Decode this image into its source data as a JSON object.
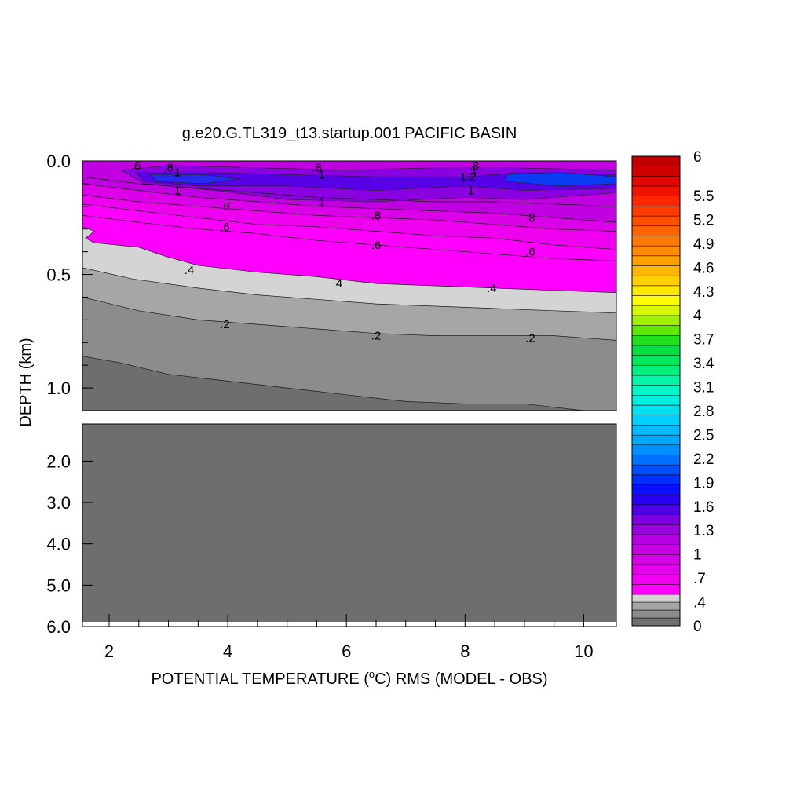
{
  "chart_data": {
    "type": "contour",
    "title": "g.e20.G.TL319_t13.startup.001 PACIFIC BASIN",
    "xlabel_pre": "POTENTIAL TEMPERATURE (",
    "xlabel_sup": "o",
    "xlabel_post": "C) RMS (MODEL - OBS)",
    "ylabel": "DEPTH (km)",
    "xlim": [
      1.55,
      10.55
    ],
    "x_ticks": [
      {
        "value": 2,
        "label": "2"
      },
      {
        "value": 4,
        "label": "4"
      },
      {
        "value": 6,
        "label": "6"
      },
      {
        "value": 8,
        "label": "8"
      },
      {
        "value": 10,
        "label": "10"
      }
    ],
    "upper_panel": {
      "ylim": [
        0.0,
        1.1
      ],
      "y_ticks": [
        {
          "value": 0.0,
          "label": "0.0"
        },
        {
          "value": 0.5,
          "label": "0.5"
        },
        {
          "value": 1.0,
          "label": "1.0"
        }
      ]
    },
    "lower_panel": {
      "ylim": [
        1.1,
        6.0
      ],
      "y_ticks": [
        {
          "value": 2.0,
          "label": "2.0"
        },
        {
          "value": 3.0,
          "label": "3.0"
        },
        {
          "value": 4.0,
          "label": "4.0"
        },
        {
          "value": 5.0,
          "label": "5.0"
        },
        {
          "value": 6.0,
          "label": "6.0"
        }
      ],
      "fill_value": 0.0
    },
    "contour_lines": [
      {
        "value": 0.1,
        "points": [
          [
            1.55,
            0.86
          ],
          [
            2.2,
            0.89
          ],
          [
            3.0,
            0.94
          ],
          [
            4.0,
            0.97
          ],
          [
            5.0,
            1.0
          ],
          [
            6.0,
            1.03
          ],
          [
            7.0,
            1.06
          ],
          [
            8.0,
            1.07
          ],
          [
            9.0,
            1.07
          ],
          [
            10.0,
            1.1
          ],
          [
            10.55,
            1.1
          ]
        ]
      },
      {
        "value": 0.2,
        "points": [
          [
            1.55,
            0.6
          ],
          [
            2.5,
            0.66
          ],
          [
            3.5,
            0.7
          ],
          [
            4.5,
            0.72
          ],
          [
            5.5,
            0.74
          ],
          [
            6.5,
            0.76
          ],
          [
            7.5,
            0.77
          ],
          [
            8.5,
            0.77
          ],
          [
            9.5,
            0.77
          ],
          [
            10.55,
            0.79
          ]
        ]
      },
      {
        "value": 0.3,
        "points": [
          [
            1.55,
            0.47
          ],
          [
            2.4,
            0.52
          ],
          [
            3.5,
            0.56
          ],
          [
            4.5,
            0.59
          ],
          [
            5.5,
            0.61
          ],
          [
            6.5,
            0.63
          ],
          [
            7.5,
            0.64
          ],
          [
            8.5,
            0.65
          ],
          [
            9.5,
            0.66
          ],
          [
            10.55,
            0.67
          ]
        ]
      },
      {
        "value": 0.4,
        "points": [
          [
            1.55,
            0.29
          ],
          [
            1.75,
            0.31
          ],
          [
            1.6,
            0.34
          ],
          [
            1.75,
            0.36
          ],
          [
            2.5,
            0.38
          ],
          [
            2.95,
            0.42
          ],
          [
            3.5,
            0.46
          ],
          [
            4.5,
            0.49
          ],
          [
            5.5,
            0.51
          ],
          [
            6.5,
            0.54
          ],
          [
            7.5,
            0.55
          ],
          [
            8.5,
            0.56
          ],
          [
            9.5,
            0.57
          ],
          [
            10.55,
            0.58
          ]
        ]
      },
      {
        "value": 0.5,
        "points": [
          [
            1.55,
            0.24
          ],
          [
            2.5,
            0.27
          ],
          [
            3.5,
            0.3
          ],
          [
            4.5,
            0.32
          ],
          [
            5.5,
            0.35
          ],
          [
            6.5,
            0.37
          ],
          [
            7.5,
            0.39
          ],
          [
            8.5,
            0.41
          ],
          [
            9.5,
            0.43
          ],
          [
            10.55,
            0.44
          ]
        ]
      },
      {
        "value": 0.6,
        "points": [
          [
            1.55,
            0.19
          ],
          [
            2.5,
            0.22
          ],
          [
            3.5,
            0.25
          ],
          [
            4.5,
            0.28
          ],
          [
            5.5,
            0.29
          ],
          [
            6.5,
            0.31
          ],
          [
            7.5,
            0.33
          ],
          [
            8.5,
            0.34
          ],
          [
            9.5,
            0.37
          ],
          [
            10.55,
            0.39
          ]
        ]
      },
      {
        "value": 0.7,
        "points": [
          [
            1.55,
            0.15
          ],
          [
            2.5,
            0.18
          ],
          [
            3.5,
            0.2
          ],
          [
            4.5,
            0.22
          ],
          [
            5.5,
            0.24
          ],
          [
            6.5,
            0.25
          ],
          [
            7.5,
            0.26
          ],
          [
            8.5,
            0.28
          ],
          [
            9.5,
            0.3
          ],
          [
            10.55,
            0.31
          ]
        ]
      },
      {
        "value": 0.8,
        "points": [
          [
            1.55,
            0.1
          ],
          [
            2.5,
            0.13
          ],
          [
            3.5,
            0.16
          ],
          [
            4.5,
            0.18
          ],
          [
            5.5,
            0.2
          ],
          [
            6.5,
            0.21
          ],
          [
            7.5,
            0.22
          ],
          [
            8.5,
            0.23
          ],
          [
            9.5,
            0.25
          ],
          [
            10.55,
            0.27
          ]
        ]
      },
      {
        "value": 0.9,
        "points": [
          [
            1.55,
            0.07
          ],
          [
            2.5,
            0.1
          ],
          [
            3.5,
            0.12
          ],
          [
            4.5,
            0.14
          ],
          [
            5.5,
            0.16
          ],
          [
            6.5,
            0.17
          ],
          [
            7.5,
            0.18
          ],
          [
            8.5,
            0.18
          ],
          [
            9.5,
            0.19
          ],
          [
            10.55,
            0.2
          ]
        ]
      }
    ],
    "fill_bands": [
      {
        "value": 0.1,
        "upper": [
          [
            1.55,
            0.86
          ],
          [
            2.2,
            0.89
          ],
          [
            3.0,
            0.94
          ],
          [
            4.0,
            0.97
          ],
          [
            5.0,
            1.0
          ],
          [
            6.0,
            1.03
          ],
          [
            7.0,
            1.06
          ],
          [
            8.0,
            1.07
          ],
          [
            9.0,
            1.07
          ],
          [
            10.0,
            1.1
          ],
          [
            10.55,
            1.1
          ]
        ],
        "color": "#8c8c8c"
      },
      {
        "value": 0.2,
        "upper": [
          [
            1.55,
            0.6
          ],
          [
            2.5,
            0.66
          ],
          [
            3.5,
            0.7
          ],
          [
            4.5,
            0.72
          ],
          [
            5.5,
            0.74
          ],
          [
            6.5,
            0.76
          ],
          [
            7.5,
            0.77
          ],
          [
            8.5,
            0.77
          ],
          [
            9.5,
            0.77
          ],
          [
            10.55,
            0.79
          ]
        ],
        "color": "#a6a6a6"
      },
      {
        "value": 0.3,
        "upper": [
          [
            1.55,
            0.47
          ],
          [
            2.4,
            0.52
          ],
          [
            3.5,
            0.56
          ],
          [
            4.5,
            0.59
          ],
          [
            5.5,
            0.61
          ],
          [
            6.5,
            0.63
          ],
          [
            7.5,
            0.64
          ],
          [
            8.5,
            0.65
          ],
          [
            9.5,
            0.66
          ],
          [
            10.55,
            0.67
          ]
        ],
        "color": "#d4d4d4"
      },
      {
        "value": 0.4,
        "upper": [
          [
            1.55,
            0.29
          ],
          [
            1.75,
            0.31
          ],
          [
            1.6,
            0.34
          ],
          [
            1.75,
            0.36
          ],
          [
            2.5,
            0.38
          ],
          [
            2.95,
            0.42
          ],
          [
            3.5,
            0.46
          ],
          [
            4.5,
            0.49
          ],
          [
            5.5,
            0.51
          ],
          [
            6.5,
            0.54
          ],
          [
            7.5,
            0.55
          ],
          [
            8.5,
            0.56
          ],
          [
            9.5,
            0.57
          ],
          [
            10.55,
            0.58
          ]
        ],
        "color": "#ff00ff"
      },
      {
        "value": 0.6,
        "upper": [
          [
            1.55,
            0.19
          ],
          [
            2.5,
            0.22
          ],
          [
            3.5,
            0.25
          ],
          [
            4.5,
            0.28
          ],
          [
            5.5,
            0.29
          ],
          [
            6.5,
            0.31
          ],
          [
            7.5,
            0.33
          ],
          [
            8.5,
            0.34
          ],
          [
            9.5,
            0.37
          ],
          [
            10.55,
            0.39
          ]
        ],
        "color": "#ee00ee"
      },
      {
        "value": 0.7,
        "upper": [
          [
            1.55,
            0.15
          ],
          [
            2.5,
            0.18
          ],
          [
            3.5,
            0.2
          ],
          [
            4.5,
            0.22
          ],
          [
            5.5,
            0.24
          ],
          [
            6.5,
            0.25
          ],
          [
            7.5,
            0.26
          ],
          [
            8.5,
            0.28
          ],
          [
            9.5,
            0.3
          ],
          [
            10.55,
            0.31
          ]
        ],
        "color": "#dc00e8"
      },
      {
        "value": 0.8,
        "upper": [
          [
            1.55,
            0.1
          ],
          [
            2.5,
            0.13
          ],
          [
            3.5,
            0.16
          ],
          [
            4.5,
            0.18
          ],
          [
            5.5,
            0.2
          ],
          [
            6.5,
            0.21
          ],
          [
            7.5,
            0.22
          ],
          [
            8.5,
            0.23
          ],
          [
            9.5,
            0.25
          ],
          [
            10.55,
            0.27
          ]
        ],
        "color": "#c000e0"
      },
      {
        "value": 0.9,
        "upper": [
          [
            1.55,
            0.0
          ],
          [
            10.55,
            0.0
          ]
        ],
        "color": "#d200e6"
      }
    ],
    "blobs": [
      {
        "value": 1.0,
        "color": "#8a00e0",
        "points": [
          [
            2.2,
            0.04
          ],
          [
            3.0,
            0.02
          ],
          [
            4.5,
            0.03
          ],
          [
            6.0,
            0.04
          ],
          [
            7.5,
            0.03
          ],
          [
            8.8,
            0.03
          ],
          [
            10.55,
            0.04
          ],
          [
            10.55,
            0.14
          ],
          [
            9.0,
            0.17
          ],
          [
            8.0,
            0.16
          ],
          [
            6.5,
            0.18
          ],
          [
            5.0,
            0.17
          ],
          [
            3.8,
            0.13
          ],
          [
            2.6,
            0.1
          ]
        ]
      },
      {
        "value": 1.1,
        "color": "#5800e6",
        "points": [
          [
            2.45,
            0.05
          ],
          [
            3.5,
            0.05
          ],
          [
            5.0,
            0.06
          ],
          [
            6.5,
            0.07
          ],
          [
            8.0,
            0.07
          ],
          [
            9.0,
            0.05
          ],
          [
            10.55,
            0.06
          ],
          [
            10.55,
            0.12
          ],
          [
            9.0,
            0.13
          ],
          [
            8.0,
            0.11
          ],
          [
            6.5,
            0.13
          ],
          [
            5.0,
            0.11
          ],
          [
            3.5,
            0.11
          ],
          [
            2.6,
            0.09
          ]
        ]
      },
      {
        "value": 1.2,
        "color": "#2828f0",
        "points": [
          [
            2.7,
            0.06
          ],
          [
            3.6,
            0.06
          ],
          [
            4.2,
            0.08
          ],
          [
            3.6,
            0.1
          ],
          [
            2.8,
            0.09
          ]
        ]
      },
      {
        "value": 1.3,
        "color": "#0a3cf5",
        "points": [
          [
            8.7,
            0.06
          ],
          [
            9.6,
            0.05
          ],
          [
            10.55,
            0.07
          ],
          [
            10.55,
            0.1
          ],
          [
            9.6,
            0.11
          ],
          [
            8.7,
            0.09
          ]
        ]
      }
    ],
    "contour_labels": [
      {
        "x": 2.45,
        "y": 0.02,
        "text": ".6"
      },
      {
        "x": 3.0,
        "y": 0.03,
        "text": ".8"
      },
      {
        "x": 3.15,
        "y": 0.05,
        "text": "1"
      },
      {
        "x": 3.15,
        "y": 0.13,
        "text": "1"
      },
      {
        "x": 3.95,
        "y": 0.2,
        "text": ".8"
      },
      {
        "x": 3.95,
        "y": 0.29,
        "text": ".6"
      },
      {
        "x": 3.35,
        "y": 0.48,
        "text": ".4"
      },
      {
        "x": 3.95,
        "y": 0.72,
        "text": ".2"
      },
      {
        "x": 5.5,
        "y": 0.03,
        "text": ".8"
      },
      {
        "x": 5.58,
        "y": 0.06,
        "text": "1"
      },
      {
        "x": 5.58,
        "y": 0.18,
        "text": "1"
      },
      {
        "x": 6.5,
        "y": 0.24,
        "text": ".8"
      },
      {
        "x": 6.5,
        "y": 0.37,
        "text": ".6"
      },
      {
        "x": 5.85,
        "y": 0.54,
        "text": ".4"
      },
      {
        "x": 6.5,
        "y": 0.77,
        "text": ".2"
      },
      {
        "x": 8.15,
        "y": 0.02,
        "text": ".8"
      },
      {
        "x": 8.15,
        "y": 0.04,
        "text": "1"
      },
      {
        "x": 8.05,
        "y": 0.07,
        "text": "1.2"
      },
      {
        "x": 8.1,
        "y": 0.13,
        "text": "1"
      },
      {
        "x": 9.1,
        "y": 0.25,
        "text": ".8"
      },
      {
        "x": 9.1,
        "y": 0.4,
        "text": ".6"
      },
      {
        "x": 8.45,
        "y": 0.56,
        "text": ".4"
      },
      {
        "x": 9.1,
        "y": 0.78,
        "text": ".2"
      }
    ],
    "colorbar": {
      "min": 0,
      "max": 6,
      "low_colors": [
        "#6e6e6e",
        "#8c8c8c",
        "#a6a6a6",
        "#d4d4d4"
      ],
      "colors": [
        "#ff00ff",
        "#f200f2",
        "#e400ec",
        "#d600e8",
        "#c800e4",
        "#b400e0",
        "#9a00e0",
        "#7c00e2",
        "#5000e6",
        "#2800f2",
        "#0a10ff",
        "#0030ff",
        "#0050ff",
        "#0070ff",
        "#0090ff",
        "#00a8ff",
        "#00bcff",
        "#00d0ff",
        "#00e0f0",
        "#00f0e0",
        "#00f5c8",
        "#00f5a8",
        "#00f080",
        "#00e860",
        "#00e040",
        "#20e020",
        "#60e800",
        "#a0f000",
        "#d8f800",
        "#ffff00",
        "#ffe800",
        "#ffd000",
        "#ffb800",
        "#ffa000",
        "#ff8c00",
        "#ff7800",
        "#ff6400",
        "#ff5000",
        "#ff3c00",
        "#ff2800",
        "#f01400",
        "#e00800",
        "#d00000",
        "#c00000"
      ],
      "labels": [
        "6",
        "5.5",
        "5.2",
        "4.9",
        "4.6",
        "4.3",
        "4",
        "3.7",
        "3.4",
        "3.1",
        "2.8",
        "2.5",
        "2.2",
        "1.9",
        "1.6",
        "1.3",
        "1",
        ".7",
        ".4",
        "0"
      ]
    }
  }
}
